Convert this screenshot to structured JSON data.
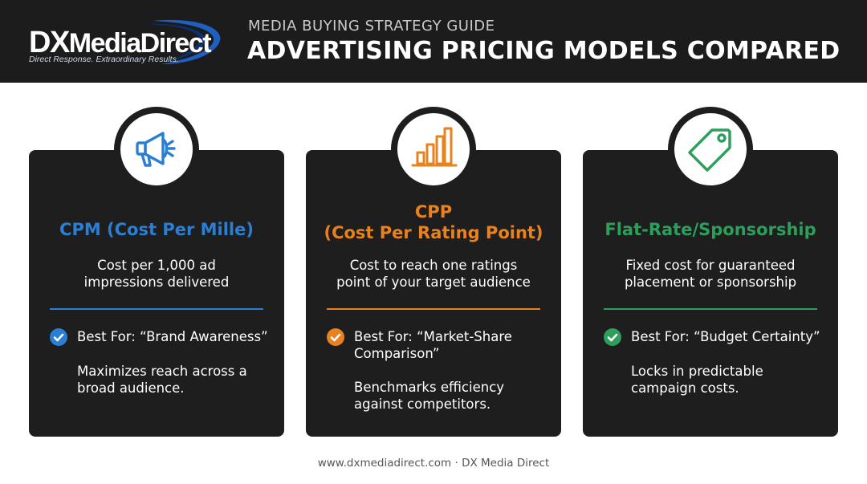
{
  "header": {
    "logo": {
      "name": "DXMediaDirect",
      "prefix": "DX",
      "suffix": "MediaDirect",
      "tagline": "Direct Response. Extraordinary Results.",
      "swoosh_color": "#1f5fbf"
    },
    "subtitle": "MEDIA BUYING STRATEGY GUIDE",
    "title": "ADVERTISING PRICING MODELS COMPARED"
  },
  "cards": [
    {
      "icon": "megaphone-icon",
      "accent": "#2a7fd4",
      "title_line1": "CPM (Cost Per Mille)",
      "title_line2": "",
      "desc_line1": "Cost per 1,000 ad",
      "desc_line2": "impressions delivered",
      "best_line1": "Best For: “Brand Awareness”",
      "best_line2": "",
      "detail_line1": "Maximizes reach across a",
      "detail_line2": "broad audience."
    },
    {
      "icon": "bar-chart-icon",
      "accent": "#e8821e",
      "title_line1": "CPP",
      "title_line2": "(Cost Per Rating Point)",
      "desc_line1": "Cost to reach one ratings",
      "desc_line2": "point of your target audience",
      "best_line1": "Best For: “Market-Share",
      "best_line2": "Comparison”",
      "detail_line1": "Benchmarks efficiency",
      "detail_line2": "against competitors."
    },
    {
      "icon": "price-tag-icon",
      "accent": "#2e9e5b",
      "title_line1": "Flat-Rate/Sponsorship",
      "title_line2": "",
      "desc_line1": "Fixed cost for guaranteed",
      "desc_line2": "placement or sponsorship",
      "best_line1": "Best For: “Budget Certainty”",
      "best_line2": "",
      "detail_line1": "Locks in predictable",
      "detail_line2": "campaign costs."
    }
  ],
  "footer": {
    "text": "www.dxmediadirect.com · DX Media Direct"
  }
}
